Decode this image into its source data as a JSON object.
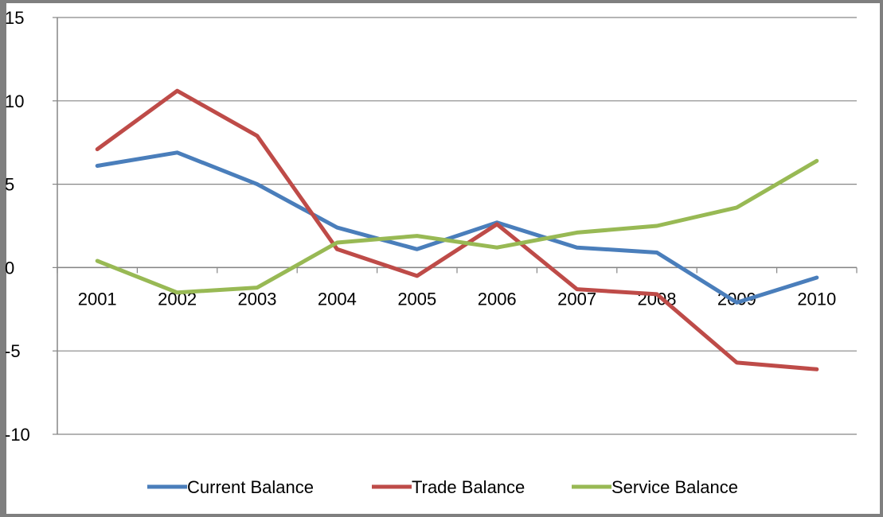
{
  "chart_data": {
    "type": "line",
    "title": "",
    "xlabel": "",
    "ylabel": "",
    "categories": [
      "2001",
      "2002",
      "2003",
      "2004",
      "2005",
      "2006",
      "2007",
      "2008",
      "2009",
      "2010"
    ],
    "ylim": [
      -10,
      15
    ],
    "yticks": [
      "15",
      "10",
      "5",
      "0",
      "-5",
      "-10"
    ],
    "grid": true,
    "legend_position": "bottom",
    "series": [
      {
        "name": "Current Balance",
        "color": "#4a7ebb",
        "values": [
          6.1,
          6.9,
          5.0,
          2.4,
          1.1,
          2.7,
          1.2,
          0.9,
          -2.1,
          -0.6
        ]
      },
      {
        "name": "Trade Balance",
        "color": "#be4b48",
        "values": [
          7.1,
          10.6,
          7.9,
          1.1,
          -0.5,
          2.6,
          -1.3,
          -1.6,
          -5.7,
          -6.1
        ]
      },
      {
        "name": "Service Balance",
        "color": "#98b954",
        "values": [
          0.4,
          -1.5,
          -1.2,
          1.5,
          1.9,
          1.2,
          2.1,
          2.5,
          3.6,
          6.4
        ]
      }
    ]
  }
}
